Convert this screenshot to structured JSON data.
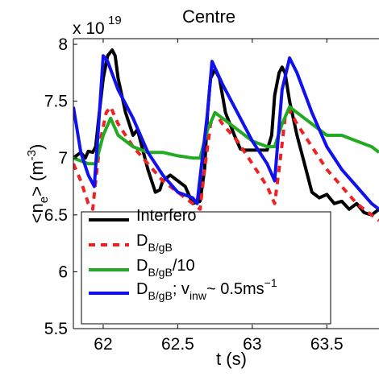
{
  "chart_data": {
    "type": "line",
    "title": "Centre",
    "xlabel": "t (s)",
    "ylabel_main": "<n",
    "ylabel_sub": "e",
    "ylabel_rest": "> (m",
    "ylabel_sup": "-3",
    "ylabel_end": ")",
    "y_multiplier_base": "x 10",
    "y_multiplier_exp": "19",
    "xlim": [
      61.8,
      63.85
    ],
    "ylim": [
      5.5,
      8.05
    ],
    "x_ticks": [
      62,
      62.5,
      63,
      63.5
    ],
    "x_tick_labels": [
      "62",
      "62.5",
      "63",
      "63.5"
    ],
    "y_ticks": [
      5.5,
      6,
      6.5,
      7,
      7.5,
      8
    ],
    "y_tick_labels": [
      "5.5",
      "6",
      "6.5",
      "7",
      "7.5",
      "8"
    ],
    "grid": false,
    "legend_position": "bottom-left",
    "series": [
      {
        "name": "Interfero",
        "legend": {
          "main": "Interfero"
        },
        "color": "#000000",
        "dash": "none",
        "x": [
          61.8,
          61.85,
          61.88,
          61.9,
          61.93,
          61.95,
          61.97,
          62.0,
          62.03,
          62.06,
          62.08,
          62.1,
          62.15,
          62.2,
          62.23,
          62.25,
          62.3,
          62.35,
          62.38,
          62.4,
          62.45,
          62.5,
          62.55,
          62.6,
          62.65,
          62.68,
          62.7,
          62.72,
          62.75,
          62.78,
          62.82,
          62.88,
          62.92,
          62.95,
          63.0,
          63.05,
          63.1,
          63.13,
          63.15,
          63.18,
          63.2,
          63.22,
          63.25,
          63.3,
          63.35,
          63.4,
          63.45,
          63.5,
          63.55,
          63.6,
          63.65,
          63.7,
          63.75,
          63.8,
          63.85
        ],
        "y": [
          7.0,
          7.05,
          7.0,
          7.06,
          7.05,
          7.1,
          7.35,
          7.7,
          7.9,
          7.95,
          7.9,
          7.7,
          7.4,
          7.2,
          7.25,
          7.15,
          6.9,
          6.7,
          6.72,
          6.8,
          6.85,
          6.8,
          6.75,
          6.6,
          6.62,
          6.9,
          7.4,
          7.7,
          7.78,
          7.7,
          7.4,
          7.2,
          7.08,
          7.07,
          7.07,
          7.07,
          7.07,
          7.2,
          7.55,
          7.75,
          7.8,
          7.75,
          7.5,
          7.2,
          6.95,
          6.7,
          6.65,
          6.68,
          6.6,
          6.62,
          6.55,
          6.6,
          6.52,
          6.5,
          6.55
        ]
      },
      {
        "name": "D_B/gB",
        "legend": {
          "main": "D",
          "sub": "B/gB"
        },
        "color": "#ee2222",
        "dash": "8,7",
        "x": [
          61.8,
          61.85,
          61.9,
          61.93,
          61.95,
          61.98,
          62.02,
          62.05,
          62.1,
          62.2,
          62.3,
          62.4,
          62.5,
          62.6,
          62.65,
          62.68,
          62.72,
          62.75,
          62.8,
          62.9,
          63.0,
          63.1,
          63.15,
          63.18,
          63.22,
          63.25,
          63.3,
          63.4,
          63.5,
          63.6,
          63.7,
          63.8,
          63.85
        ],
        "y": [
          6.95,
          6.8,
          6.6,
          6.55,
          6.8,
          7.15,
          7.4,
          7.45,
          7.3,
          7.1,
          6.95,
          6.8,
          6.7,
          6.6,
          6.55,
          6.9,
          7.3,
          7.4,
          7.3,
          7.15,
          6.95,
          6.75,
          6.6,
          6.9,
          7.35,
          7.42,
          7.3,
          7.1,
          6.9,
          6.75,
          6.6,
          6.5,
          6.45
        ]
      },
      {
        "name": "D_B/gB/10",
        "legend": {
          "main": "D",
          "sub": "B/gB",
          "suffix": "/10"
        },
        "color": "#22aa22",
        "dash": "none",
        "x": [
          61.8,
          61.9,
          61.95,
          62.0,
          62.05,
          62.1,
          62.2,
          62.3,
          62.4,
          62.5,
          62.6,
          62.65,
          62.7,
          62.75,
          62.8,
          62.9,
          63.0,
          63.1,
          63.15,
          63.2,
          63.25,
          63.3,
          63.4,
          63.5,
          63.6,
          63.7,
          63.8,
          63.85
        ],
        "y": [
          7.0,
          6.95,
          6.95,
          7.2,
          7.35,
          7.2,
          7.1,
          7.05,
          7.05,
          7.02,
          7.0,
          7.0,
          7.25,
          7.4,
          7.35,
          7.25,
          7.15,
          7.1,
          7.1,
          7.3,
          7.45,
          7.4,
          7.3,
          7.2,
          7.2,
          7.15,
          7.1,
          7.05
        ]
      },
      {
        "name": "D_B/gB; v_inw ~ 0.5ms^-1",
        "legend": {
          "main": "D",
          "sub": "B/gB",
          "after_sub": "; v",
          "sub2": "inw",
          "after_sub2": "~ 0.5ms",
          "sup": "−1"
        },
        "color": "#1111ee",
        "dash": "none",
        "x": [
          61.8,
          61.85,
          61.9,
          61.94,
          61.97,
          62.0,
          62.03,
          62.1,
          62.2,
          62.3,
          62.4,
          62.5,
          62.6,
          62.63,
          62.7,
          62.73,
          62.8,
          62.9,
          63.0,
          63.1,
          63.15,
          63.2,
          63.25,
          63.3,
          63.4,
          63.5,
          63.6,
          63.7,
          63.8,
          63.85
        ],
        "y": [
          7.45,
          7.05,
          6.85,
          6.75,
          7.3,
          7.9,
          7.85,
          7.6,
          7.35,
          7.05,
          6.85,
          6.7,
          6.65,
          6.6,
          7.4,
          7.85,
          7.65,
          7.4,
          7.15,
          6.95,
          6.8,
          7.6,
          7.88,
          7.75,
          7.4,
          7.1,
          6.9,
          6.75,
          6.6,
          6.55
        ]
      }
    ]
  }
}
